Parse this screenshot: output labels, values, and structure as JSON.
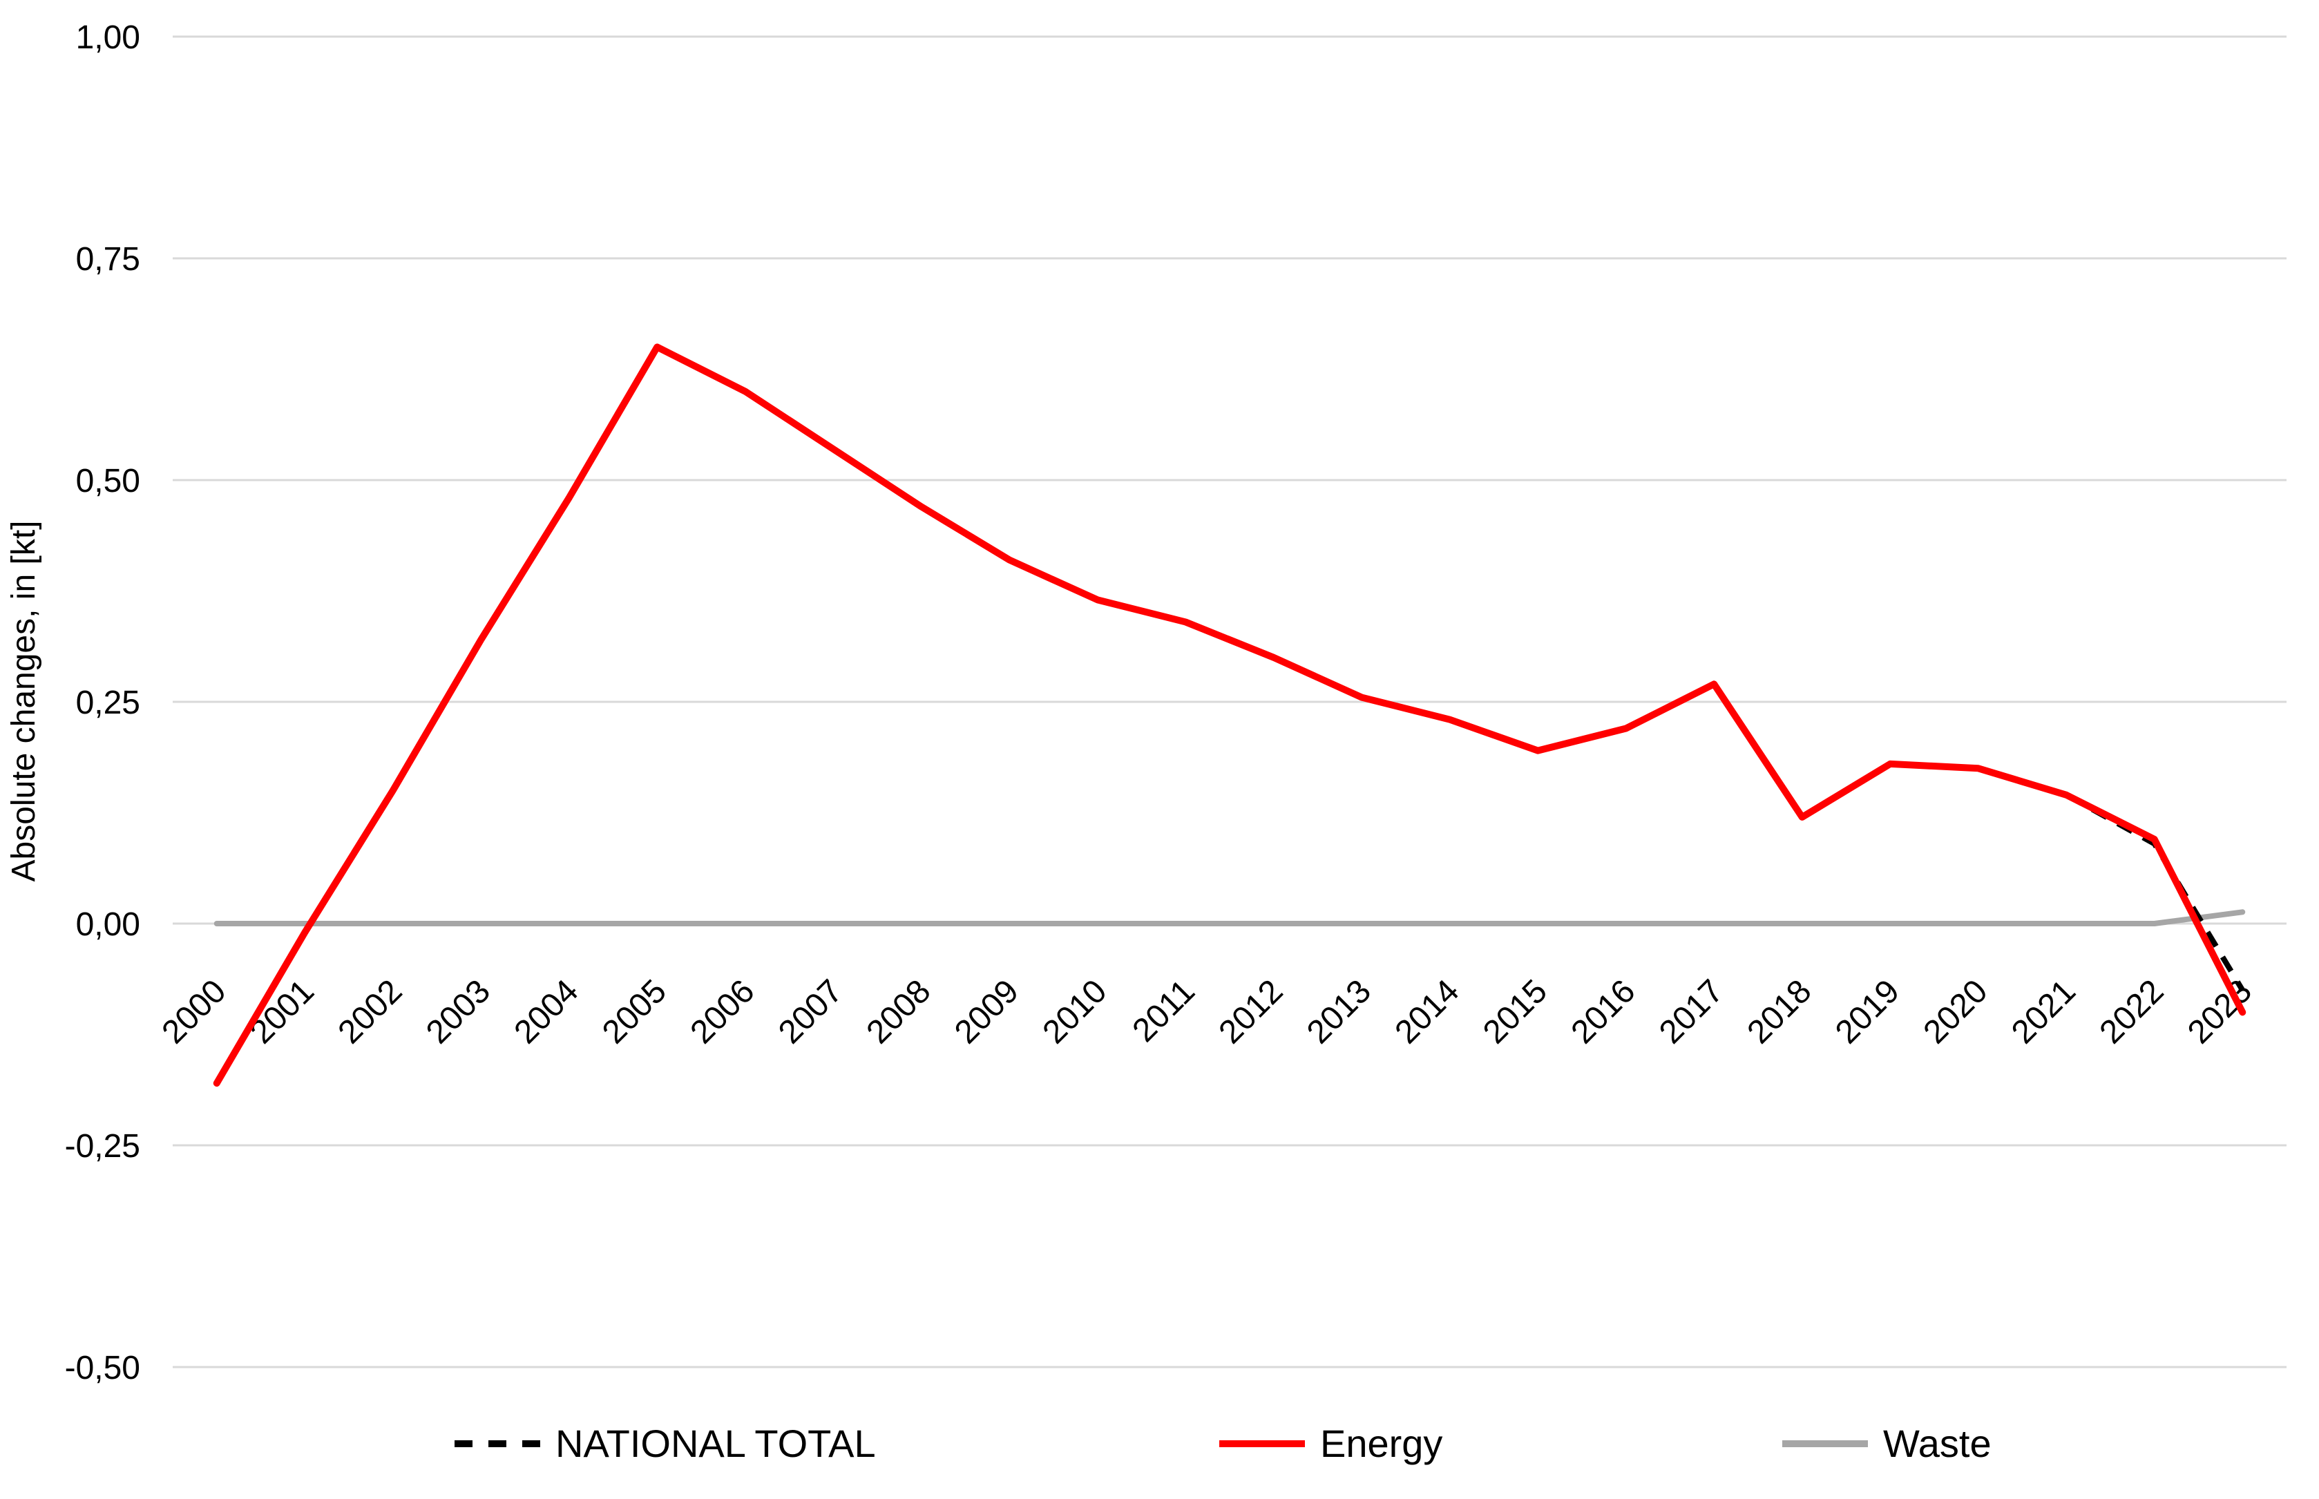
{
  "chart_data": {
    "type": "line",
    "title": "",
    "xlabel": "",
    "ylabel": "Absolute changes, in [kt]",
    "ylim": [
      -0.5,
      1.0
    ],
    "ytick_step": 0.25,
    "decimal_separator": ",",
    "grid": true,
    "gridline_color": "#D9D9D9",
    "background_color": "#FFFFFF",
    "legend_position": "bottom",
    "yticks": [
      {
        "value": 1.0,
        "label": "1,00"
      },
      {
        "value": 0.75,
        "label": "0,75"
      },
      {
        "value": 0.5,
        "label": "0,50"
      },
      {
        "value": 0.25,
        "label": "0,25"
      },
      {
        "value": 0.0,
        "label": "0,00"
      },
      {
        "value": -0.25,
        "label": "-0,25"
      },
      {
        "value": -0.5,
        "label": "-0,50"
      }
    ],
    "categories": [
      "2000",
      "2001",
      "2002",
      "2003",
      "2004",
      "2005",
      "2006",
      "2007",
      "2008",
      "2009",
      "2010",
      "2011",
      "2012",
      "2013",
      "2014",
      "2015",
      "2016",
      "2017",
      "2018",
      "2019",
      "2020",
      "2021",
      "2022",
      "2023"
    ],
    "series": [
      {
        "name": "NATIONAL TOTAL",
        "color": "#000000",
        "line_style": "dashed",
        "values": [
          -0.18,
          -0.01,
          0.15,
          0.32,
          0.48,
          0.65,
          0.6,
          0.535,
          0.47,
          0.41,
          0.365,
          0.34,
          0.3,
          0.255,
          0.23,
          0.195,
          0.22,
          0.27,
          0.12,
          0.18,
          0.175,
          0.145,
          0.09,
          -0.075
        ]
      },
      {
        "name": "Energy",
        "color": "#FF0000",
        "line_style": "solid",
        "values": [
          -0.18,
          -0.01,
          0.15,
          0.32,
          0.48,
          0.65,
          0.6,
          0.535,
          0.47,
          0.41,
          0.365,
          0.34,
          0.3,
          0.255,
          0.23,
          0.195,
          0.22,
          0.27,
          0.12,
          0.18,
          0.175,
          0.145,
          0.095,
          -0.1
        ]
      },
      {
        "name": "Waste",
        "color": "#A6A6A6",
        "line_style": "solid",
        "values": [
          0.0,
          0.0,
          0.0,
          0.0,
          0.0,
          0.0,
          0.0,
          0.0,
          0.0,
          0.0,
          0.0,
          0.0,
          0.0,
          0.0,
          0.0,
          0.0,
          0.0,
          0.0,
          0.0,
          0.0,
          0.0,
          0.0,
          0.0,
          0.013
        ]
      }
    ]
  }
}
